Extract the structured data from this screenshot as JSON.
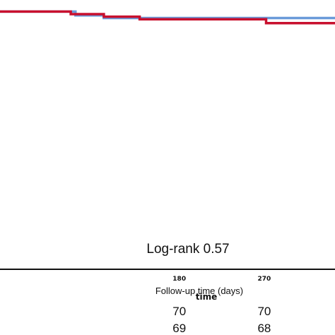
{
  "chart_data": {
    "type": "line",
    "step": true,
    "xlim": [
      -10,
      345
    ],
    "ylim": [
      0,
      1.045
    ],
    "x_ticks": [
      180,
      270
    ],
    "xlabel": "Follow-up time (days)",
    "xlabel_overlay": "time",
    "annotation": "Log-rank 0.57",
    "series": [
      {
        "color": "#6a9ad9",
        "values": [
          [
            -10,
            1.0
          ],
          [
            60,
            1.0
          ],
          [
            70,
            0.985
          ],
          [
            100,
            0.975
          ],
          [
            138,
            0.975
          ],
          [
            345,
            0.975
          ]
        ]
      },
      {
        "color": "#c8102e",
        "values": [
          [
            -10,
            1.0
          ],
          [
            57,
            1.0
          ],
          [
            65,
            0.99
          ],
          [
            96,
            0.99
          ],
          [
            100,
            0.98
          ],
          [
            138,
            0.97
          ],
          [
            268,
            0.97
          ],
          [
            272,
            0.955
          ],
          [
            345,
            0.955
          ]
        ]
      }
    ],
    "risk_table": {
      "columns": [
        180,
        270
      ],
      "rows": [
        {
          "values": [
            "70",
            "70"
          ]
        },
        {
          "values": [
            "69",
            "68"
          ]
        }
      ]
    }
  },
  "colors": {
    "blue": "#6a9ad9",
    "red": "#c8102e",
    "axis": "#111111"
  }
}
